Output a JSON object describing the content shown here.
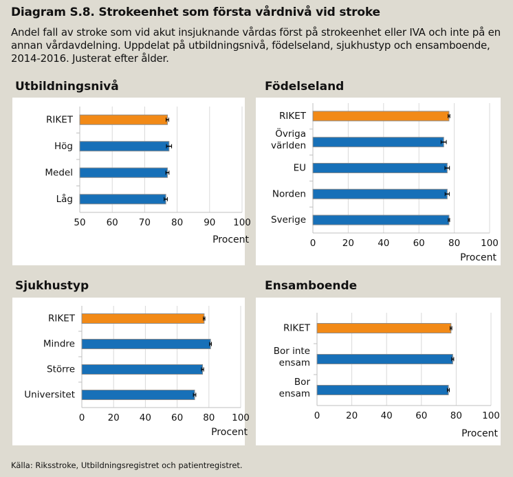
{
  "title": "Diagram S.8. Strokeenhet som första vårdnivå vid stroke",
  "subtitle": "Andel fall av stroke som vid akut insjuknande vårdas först på strokeenhet eller IVA och inte på en annan vårdavdelning. Uppdelat på utbildningsnivå, födelseland, sjukhustyp och ensamboende, 2014-2016.  Justerat efter ålder.",
  "source": "Källa: Riksstroke, Utbildningsregistret och patientregistret.",
  "colors": {
    "riket": "#f28a17",
    "group": "#1770b8",
    "panel_bg": "#ffffff",
    "page_bg": "#dedbd1"
  },
  "chart_data": [
    {
      "type": "bar",
      "orientation": "horizontal",
      "title": "Utbildningsnivå",
      "categories": [
        "RIKET",
        "Hög",
        "Medel",
        "Låg"
      ],
      "values": [
        77,
        77.5,
        77,
        76.5
      ],
      "errors": [
        0.4,
        0.8,
        0.5,
        0.5
      ],
      "highlight": [
        true,
        false,
        false,
        false
      ],
      "xlim": [
        50,
        100
      ],
      "ticks": [
        50,
        60,
        70,
        80,
        90,
        100
      ],
      "xlabel": "Procent"
    },
    {
      "type": "bar",
      "orientation": "horizontal",
      "title": "Födelseland",
      "categories": [
        "RIKET",
        "Övriga världen",
        "EU",
        "Norden",
        "Sverige"
      ],
      "values": [
        77,
        74,
        76,
        76,
        77
      ],
      "errors": [
        0.5,
        1.5,
        1.3,
        1.2,
        0.4
      ],
      "highlight": [
        true,
        false,
        false,
        false,
        false
      ],
      "xlim": [
        0,
        100
      ],
      "ticks": [
        0,
        20,
        40,
        60,
        80,
        100
      ],
      "xlabel": "Procent"
    },
    {
      "type": "bar",
      "orientation": "horizontal",
      "title": "Sjukhustyp",
      "categories": [
        "RIKET",
        "Mindre",
        "Större",
        "Universitet"
      ],
      "values": [
        77,
        81,
        76,
        71
      ],
      "errors": [
        0.5,
        0.6,
        0.7,
        0.8
      ],
      "highlight": [
        true,
        false,
        false,
        false
      ],
      "xlim": [
        0,
        100
      ],
      "ticks": [
        0,
        20,
        40,
        60,
        80,
        100
      ],
      "xlabel": "Procent"
    },
    {
      "type": "bar",
      "orientation": "horizontal",
      "title": "Ensamboende",
      "categories": [
        "RIKET",
        "Bor inte ensam",
        "Bor ensam"
      ],
      "values": [
        77,
        78,
        75.5
      ],
      "errors": [
        0.5,
        0.6,
        0.6
      ],
      "highlight": [
        true,
        false,
        false
      ],
      "xlim": [
        0,
        100
      ],
      "ticks": [
        0,
        20,
        40,
        60,
        80,
        100
      ],
      "xlabel": "Procent"
    }
  ]
}
